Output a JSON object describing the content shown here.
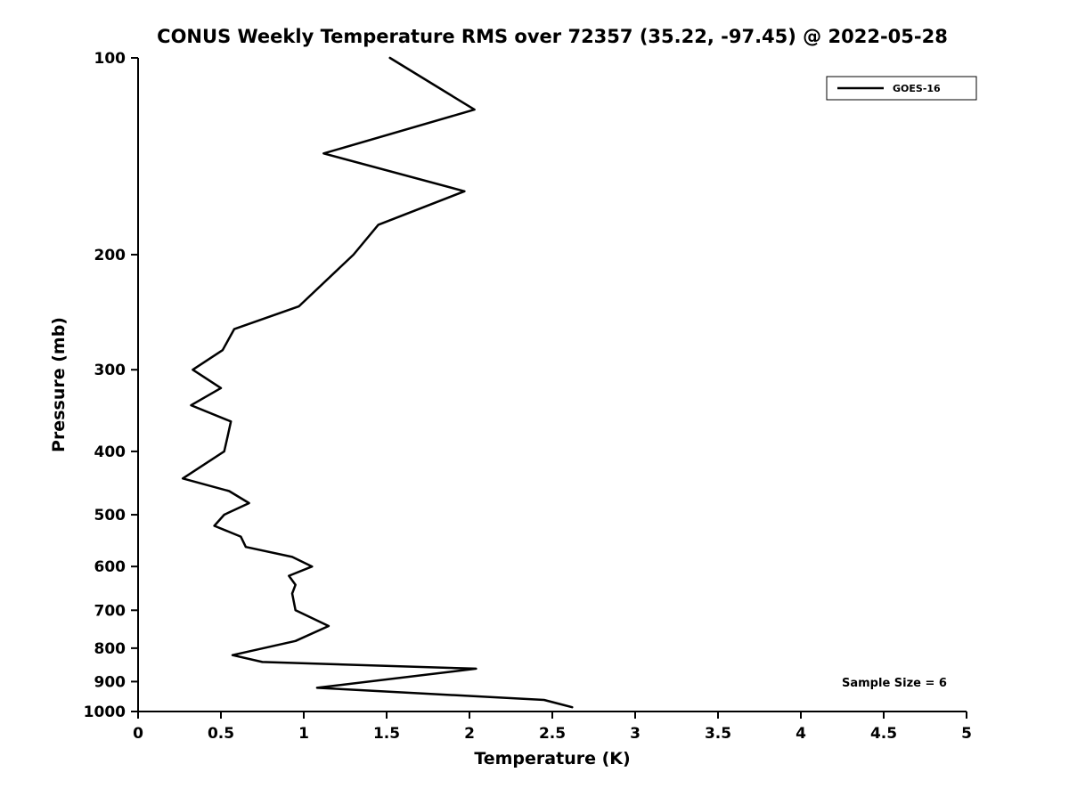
{
  "figure": {
    "background_color": "#ffffff",
    "line_color": "#000000"
  },
  "chart_data": {
    "type": "line",
    "title": "CONUS Weekly Temperature RMS over 72357 (35.22, -97.45) @ 2022-05-28",
    "xlabel": "Temperature (K)",
    "ylabel": "Pressure (mb)",
    "xlim": [
      0,
      5
    ],
    "ylim": [
      100,
      1000
    ],
    "y_scale": "log",
    "y_inverted": true,
    "grid": false,
    "legend_position": "northeast",
    "x_ticks": {
      "values": [
        0,
        0.5,
        1,
        1.5,
        2,
        2.5,
        3,
        3.5,
        4,
        4.5,
        5
      ],
      "labels": [
        "0",
        "0.5",
        "1",
        "1.5",
        "2",
        "2.5",
        "3",
        "3.5",
        "4",
        "4.5",
        "5"
      ]
    },
    "y_ticks": {
      "values": [
        100,
        200,
        300,
        400,
        500,
        600,
        700,
        800,
        900,
        1000
      ],
      "labels": [
        "100",
        "200",
        "300",
        "400",
        "500",
        "600",
        "700",
        "800",
        "900",
        "1000"
      ]
    },
    "series": [
      {
        "name": "GOES-16",
        "color": "#000000",
        "pressure_mb": [
          100,
          120,
          140,
          160,
          180,
          200,
          240,
          260,
          280,
          300,
          320,
          340,
          360,
          380,
          400,
          440,
          460,
          480,
          500,
          520,
          540,
          560,
          580,
          600,
          620,
          640,
          660,
          700,
          740,
          780,
          820,
          840,
          860,
          920,
          960,
          985
        ],
        "temperature_rms_k": [
          1.52,
          2.03,
          1.12,
          1.97,
          1.45,
          1.3,
          0.97,
          0.58,
          0.51,
          0.33,
          0.5,
          0.32,
          0.56,
          0.54,
          0.52,
          0.27,
          0.55,
          0.67,
          0.52,
          0.46,
          0.62,
          0.65,
          0.93,
          1.05,
          0.91,
          0.95,
          0.93,
          0.95,
          1.15,
          0.95,
          0.57,
          0.75,
          2.04,
          1.08,
          2.45,
          2.62
        ]
      }
    ],
    "annotation": "Sample Size = 6",
    "legend": {
      "entries": [
        {
          "label": "GOES-16",
          "color": "#000000"
        }
      ]
    }
  }
}
